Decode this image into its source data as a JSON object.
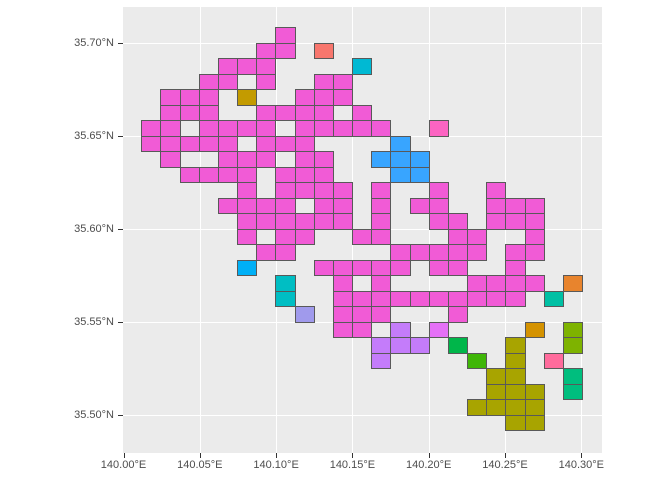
{
  "figure": {
    "background": "#FFFFFF",
    "panel_background": "#EBEBEB",
    "gridline_color": "#FFFFFF",
    "tile_border_color": "#595959",
    "axis_text_color": "#4D4D4D",
    "tick_mark_color": "#333333"
  },
  "chart_data": {
    "type": "heatmap",
    "description": "Geographic grid-cell (mesh tile) map over the Tokyo Bay / Chiba area; ~0.0125 deg lon x ~0.00833 deg lat cells colored by category; most cells belong to one large pink cluster",
    "x_axis": {
      "ticks": [
        "140.00°E",
        "140.05°E",
        "140.10°E",
        "140.15°E",
        "140.20°E",
        "140.25°E",
        "140.30°E"
      ],
      "values": [
        140.0,
        140.05,
        140.1,
        140.15,
        140.2,
        140.25,
        140.3
      ],
      "range": [
        140.0,
        140.315
      ]
    },
    "y_axis": {
      "ticks": [
        "35.70°N",
        "35.65°N",
        "35.60°N",
        "35.55°N",
        "35.50°N"
      ],
      "values": [
        35.7,
        35.65,
        35.6,
        35.55,
        35.5
      ],
      "range": [
        35.479,
        35.722
      ]
    },
    "cell_size_deg": {
      "lon": 0.0125,
      "lat": 0.008333
    },
    "cell_mapping": "lon_left = 140.0 + 0.0125*col ; lat_top = 35.70833 - 0.008333*row",
    "grid": "major gridlines only, white on gray panel",
    "legend": "none shown",
    "categories": {
      "pink": "#F15BD6",
      "salmon": "#F8766D",
      "mustard": "#C39B00",
      "hot_pink": "#FC64C2",
      "sky_blue": "#38A5FF",
      "azure": "#00B0F6",
      "teal_cyan": "#00BEC3",
      "cyan": "#00B9D3",
      "periwinkle": "#A09AEC",
      "violet": "#C47CFA",
      "violet_pink": "#E570F7",
      "orange": "#E8842D",
      "amber": "#D49200",
      "yellow_green": "#7EB300",
      "green": "#00B64A",
      "grass_green": "#3FB607",
      "olive": "#A8A400",
      "rose": "#FF6B9C",
      "emerald": "#00BE7E",
      "teal_green": "#00C0A4"
    },
    "tiles": [
      [
        8,
        0,
        "pink"
      ],
      [
        7,
        1,
        "pink"
      ],
      [
        8,
        1,
        "pink"
      ],
      [
        10,
        1,
        "salmon"
      ],
      [
        5,
        2,
        "pink"
      ],
      [
        6,
        2,
        "pink"
      ],
      [
        7,
        2,
        "pink"
      ],
      [
        12,
        2,
        "cyan"
      ],
      [
        4,
        3,
        "pink"
      ],
      [
        5,
        3,
        "pink"
      ],
      [
        7,
        3,
        "pink"
      ],
      [
        10,
        3,
        "pink"
      ],
      [
        11,
        3,
        "pink"
      ],
      [
        2,
        4,
        "pink"
      ],
      [
        3,
        4,
        "pink"
      ],
      [
        4,
        4,
        "pink"
      ],
      [
        6,
        4,
        "mustard"
      ],
      [
        9,
        4,
        "pink"
      ],
      [
        10,
        4,
        "pink"
      ],
      [
        11,
        4,
        "pink"
      ],
      [
        2,
        5,
        "pink"
      ],
      [
        3,
        5,
        "pink"
      ],
      [
        4,
        5,
        "pink"
      ],
      [
        7,
        5,
        "pink"
      ],
      [
        8,
        5,
        "pink"
      ],
      [
        9,
        5,
        "pink"
      ],
      [
        10,
        5,
        "pink"
      ],
      [
        12,
        5,
        "pink"
      ],
      [
        1,
        6,
        "pink"
      ],
      [
        2,
        6,
        "pink"
      ],
      [
        4,
        6,
        "pink"
      ],
      [
        5,
        6,
        "pink"
      ],
      [
        6,
        6,
        "pink"
      ],
      [
        7,
        6,
        "pink"
      ],
      [
        9,
        6,
        "pink"
      ],
      [
        10,
        6,
        "pink"
      ],
      [
        11,
        6,
        "pink"
      ],
      [
        12,
        6,
        "pink"
      ],
      [
        13,
        6,
        "pink"
      ],
      [
        16,
        6,
        "hot_pink"
      ],
      [
        1,
        7,
        "pink"
      ],
      [
        2,
        7,
        "pink"
      ],
      [
        3,
        7,
        "pink"
      ],
      [
        4,
        7,
        "pink"
      ],
      [
        5,
        7,
        "pink"
      ],
      [
        7,
        7,
        "pink"
      ],
      [
        8,
        7,
        "pink"
      ],
      [
        9,
        7,
        "pink"
      ],
      [
        14,
        7,
        "sky_blue"
      ],
      [
        2,
        8,
        "pink"
      ],
      [
        5,
        8,
        "pink"
      ],
      [
        6,
        8,
        "pink"
      ],
      [
        7,
        8,
        "pink"
      ],
      [
        9,
        8,
        "pink"
      ],
      [
        10,
        8,
        "pink"
      ],
      [
        13,
        8,
        "sky_blue"
      ],
      [
        14,
        8,
        "sky_blue"
      ],
      [
        15,
        8,
        "sky_blue"
      ],
      [
        3,
        9,
        "pink"
      ],
      [
        4,
        9,
        "pink"
      ],
      [
        5,
        9,
        "pink"
      ],
      [
        6,
        9,
        "pink"
      ],
      [
        8,
        9,
        "pink"
      ],
      [
        9,
        9,
        "pink"
      ],
      [
        10,
        9,
        "pink"
      ],
      [
        14,
        9,
        "sky_blue"
      ],
      [
        15,
        9,
        "sky_blue"
      ],
      [
        6,
        10,
        "pink"
      ],
      [
        8,
        10,
        "pink"
      ],
      [
        9,
        10,
        "pink"
      ],
      [
        10,
        10,
        "pink"
      ],
      [
        11,
        10,
        "pink"
      ],
      [
        13,
        10,
        "pink"
      ],
      [
        16,
        10,
        "pink"
      ],
      [
        19,
        10,
        "pink"
      ],
      [
        5,
        11,
        "pink"
      ],
      [
        6,
        11,
        "pink"
      ],
      [
        7,
        11,
        "pink"
      ],
      [
        8,
        11,
        "pink"
      ],
      [
        10,
        11,
        "pink"
      ],
      [
        11,
        11,
        "pink"
      ],
      [
        13,
        11,
        "pink"
      ],
      [
        15,
        11,
        "pink"
      ],
      [
        16,
        11,
        "pink"
      ],
      [
        19,
        11,
        "pink"
      ],
      [
        20,
        11,
        "pink"
      ],
      [
        21,
        11,
        "pink"
      ],
      [
        6,
        12,
        "pink"
      ],
      [
        7,
        12,
        "pink"
      ],
      [
        8,
        12,
        "pink"
      ],
      [
        9,
        12,
        "pink"
      ],
      [
        10,
        12,
        "pink"
      ],
      [
        11,
        12,
        "pink"
      ],
      [
        13,
        12,
        "pink"
      ],
      [
        16,
        12,
        "pink"
      ],
      [
        17,
        12,
        "pink"
      ],
      [
        19,
        12,
        "pink"
      ],
      [
        20,
        12,
        "pink"
      ],
      [
        21,
        12,
        "pink"
      ],
      [
        6,
        13,
        "pink"
      ],
      [
        8,
        13,
        "pink"
      ],
      [
        9,
        13,
        "pink"
      ],
      [
        12,
        13,
        "pink"
      ],
      [
        13,
        13,
        "pink"
      ],
      [
        17,
        13,
        "pink"
      ],
      [
        18,
        13,
        "pink"
      ],
      [
        21,
        13,
        "pink"
      ],
      [
        7,
        14,
        "pink"
      ],
      [
        8,
        14,
        "pink"
      ],
      [
        14,
        14,
        "pink"
      ],
      [
        15,
        14,
        "pink"
      ],
      [
        16,
        14,
        "pink"
      ],
      [
        17,
        14,
        "pink"
      ],
      [
        18,
        14,
        "pink"
      ],
      [
        20,
        14,
        "pink"
      ],
      [
        21,
        14,
        "pink"
      ],
      [
        6,
        15,
        "azure"
      ],
      [
        10,
        15,
        "pink"
      ],
      [
        11,
        15,
        "pink"
      ],
      [
        12,
        15,
        "pink"
      ],
      [
        13,
        15,
        "pink"
      ],
      [
        14,
        15,
        "pink"
      ],
      [
        16,
        15,
        "pink"
      ],
      [
        17,
        15,
        "pink"
      ],
      [
        20,
        15,
        "pink"
      ],
      [
        8,
        16,
        "teal_cyan"
      ],
      [
        11,
        16,
        "pink"
      ],
      [
        13,
        16,
        "pink"
      ],
      [
        18,
        16,
        "pink"
      ],
      [
        19,
        16,
        "pink"
      ],
      [
        20,
        16,
        "pink"
      ],
      [
        21,
        16,
        "pink"
      ],
      [
        23,
        16,
        "orange"
      ],
      [
        8,
        17,
        "teal_cyan"
      ],
      [
        11,
        17,
        "pink"
      ],
      [
        12,
        17,
        "pink"
      ],
      [
        13,
        17,
        "pink"
      ],
      [
        14,
        17,
        "pink"
      ],
      [
        15,
        17,
        "pink"
      ],
      [
        16,
        17,
        "pink"
      ],
      [
        17,
        17,
        "pink"
      ],
      [
        18,
        17,
        "pink"
      ],
      [
        19,
        17,
        "pink"
      ],
      [
        20,
        17,
        "pink"
      ],
      [
        22,
        17,
        "teal_green"
      ],
      [
        9,
        18,
        "periwinkle"
      ],
      [
        11,
        18,
        "pink"
      ],
      [
        12,
        18,
        "pink"
      ],
      [
        13,
        18,
        "pink"
      ],
      [
        17,
        18,
        "pink"
      ],
      [
        11,
        19,
        "pink"
      ],
      [
        12,
        19,
        "pink"
      ],
      [
        14,
        19,
        "violet"
      ],
      [
        16,
        19,
        "violet_pink"
      ],
      [
        21,
        19,
        "amber"
      ],
      [
        23,
        19,
        "yellow_green"
      ],
      [
        13,
        20,
        "violet"
      ],
      [
        14,
        20,
        "violet"
      ],
      [
        15,
        20,
        "violet"
      ],
      [
        17,
        20,
        "green"
      ],
      [
        20,
        20,
        "olive"
      ],
      [
        23,
        20,
        "yellow_green"
      ],
      [
        13,
        21,
        "violet"
      ],
      [
        18,
        21,
        "grass_green"
      ],
      [
        20,
        21,
        "olive"
      ],
      [
        22,
        21,
        "rose"
      ],
      [
        19,
        22,
        "olive"
      ],
      [
        20,
        22,
        "olive"
      ],
      [
        23,
        22,
        "emerald"
      ],
      [
        19,
        23,
        "olive"
      ],
      [
        20,
        23,
        "olive"
      ],
      [
        21,
        23,
        "olive"
      ],
      [
        23,
        23,
        "emerald"
      ],
      [
        18,
        24,
        "olive"
      ],
      [
        19,
        24,
        "olive"
      ],
      [
        20,
        24,
        "olive"
      ],
      [
        21,
        24,
        "olive"
      ],
      [
        20,
        25,
        "olive"
      ],
      [
        21,
        25,
        "olive"
      ]
    ]
  }
}
